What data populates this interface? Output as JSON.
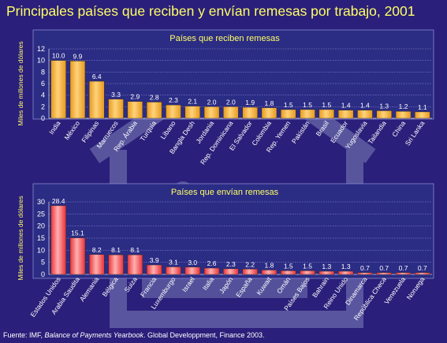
{
  "title": "Principales países que reciben y envían remesas por trabajo, 2001",
  "colors": {
    "background": "#2a1f7a",
    "title_text": "#ffff66",
    "plot_background": "#2b2c84",
    "receive_bar": "#e69a1e",
    "send_bar": "#e8333a",
    "watermark": "#7f82bb"
  },
  "watermark_icon": "house-with-people-icon",
  "source": {
    "prefix": "Fuente: IMF, ",
    "italic": "Balance of Payments Yearbook",
    "suffix": ". Global Developpment, Finance 2003."
  },
  "chart_data": [
    {
      "type": "bar",
      "title": "Países que reciben remesas",
      "xlabel": "",
      "ylabel": "Miles de millones de dólares",
      "ylim": [
        0,
        12
      ],
      "yticks": [
        0,
        2,
        4,
        6,
        8,
        10,
        12
      ],
      "grid": true,
      "legend": "none",
      "categories": [
        "India",
        "México",
        "Filipinas",
        "Marruecos",
        "Rep. Árabia",
        "Turquía",
        "Líbano",
        "Bangla Desh",
        "Jordania",
        "Rep. Dominicana",
        "El Salvador",
        "Colombia",
        "Rep. Yemen",
        "Pakistán",
        "Brasil",
        "Ecuador",
        "Yugoslavia",
        "Tailandia",
        "China",
        "Sri Lanka"
      ],
      "values": [
        10.0,
        9.9,
        6.4,
        3.3,
        2.9,
        2.8,
        2.3,
        2.1,
        2.0,
        2.0,
        1.9,
        1.8,
        1.5,
        1.5,
        1.5,
        1.4,
        1.4,
        1.3,
        1.2,
        1.1
      ],
      "value_labels": [
        "10.0",
        "9.9",
        "6.4",
        "3.3",
        "2.9",
        "2.8",
        "2.3",
        "2.1",
        "2.0",
        "2.0",
        "1.9",
        "1.8",
        "1.5",
        "1.5",
        "1.5",
        "1.4",
        "1.4",
        "1.3",
        "1.2",
        "1.1"
      ]
    },
    {
      "type": "bar",
      "title": "Países que envían remesas",
      "xlabel": "",
      "ylabel": "Miles de millones de dólares",
      "ylim": [
        0,
        30
      ],
      "yticks": [
        0,
        5,
        10,
        15,
        20,
        25,
        30
      ],
      "grid": true,
      "legend": "none",
      "categories": [
        "Estados Unidos",
        "Arabia Saudita",
        "Alemania",
        "Bélgica",
        "Suiza",
        "Francia",
        "Luxemburgo",
        "Israel",
        "Italia",
        "Japón",
        "España",
        "Kuwait",
        "Omán",
        "Países Bajos",
        "Bahrain",
        "Reino Unido",
        "Dinamarca",
        "República Checa",
        "Venezuela",
        "Noruega"
      ],
      "values": [
        28.4,
        15.1,
        8.2,
        8.1,
        8.1,
        3.9,
        3.1,
        3.0,
        2.6,
        2.3,
        2.2,
        1.8,
        1.5,
        1.5,
        1.3,
        1.3,
        0.7,
        0.7,
        0.7,
        0.7
      ],
      "value_labels": [
        "28.4",
        "15.1",
        "8.2",
        "8.1",
        "8.1",
        "3.9",
        "3.1",
        "3.0",
        "2.6",
        "2.3",
        "2.2",
        "1.8",
        "1.5",
        "1.5",
        "1.3",
        "1.3",
        "0.7",
        "0.7",
        "0.7",
        "0.7"
      ]
    }
  ]
}
